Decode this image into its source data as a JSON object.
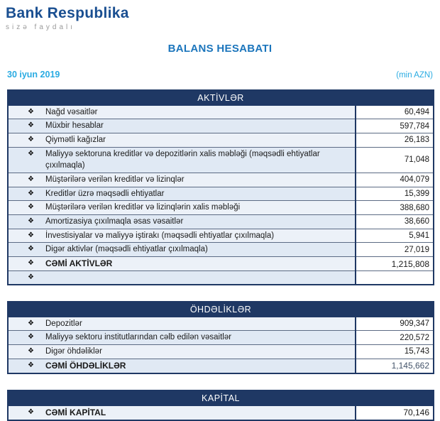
{
  "logo": {
    "title": "Bank Respublika",
    "tagline": "sizə faydalı"
  },
  "report": {
    "title": "BALANS HESABATI",
    "date": "30 iyun 2019",
    "unit": "(min AZN)"
  },
  "bullet_icon": "❖",
  "colors": {
    "navy": "#1F3864",
    "title_blue": "#1B75BC",
    "accent_cyan": "#29ABE2",
    "logo_navy": "#1A4F91",
    "row_bg": "#ECF1F8",
    "row_bg_alt": "#E0E9F4",
    "total_blue": "#44546A"
  },
  "sections": [
    {
      "header": "AKTİVLƏR",
      "rows": [
        {
          "label": "Nağd vəsaitlər",
          "value": "60,494"
        },
        {
          "label": "Müxbir hesablar",
          "value": "597,784"
        },
        {
          "label": "Qiymətli kağızlar",
          "value": "26,183"
        },
        {
          "label": "Maliyyə sektoruna kreditlər və depozitlərin xalis məbləği (məqsədli ehtiyatlar çıxılmaqla)",
          "value": "71,048"
        },
        {
          "label": "Müştərilərə verilən kreditlər və lizinqlər",
          "value": "404,079"
        },
        {
          "label": "Kreditlər üzrə məqsədli ehtiyatlar",
          "value": "15,399"
        },
        {
          "label": "Müştərilərə verilən kreditlər və lizinqlərin xalis məbləği",
          "value": "388,680"
        },
        {
          "label": "Amortizasiya çıxılmaqla əsas vəsaitlər",
          "value": "38,660"
        },
        {
          "label": "İnvestisiyalar və maliyyə iştirakı (məqsədli ehtiyatlar çıxılmaqla)",
          "value": "5,941"
        },
        {
          "label": "Digər aktivlər (məqsədli ehtiyatlar çıxılmaqla)",
          "value": "27,019"
        },
        {
          "label": "CƏMİ AKTİVLƏR",
          "value": "1,215,808",
          "bold": true
        },
        {
          "label": "",
          "value": "",
          "empty": true
        }
      ]
    },
    {
      "header": "ÖHDƏLİKLƏR",
      "rows": [
        {
          "label": "Depozitlər",
          "value": "909,347"
        },
        {
          "label": "Maliyyə sektoru institutlarından cəlb edilən vəsaitlər",
          "value": "220,572"
        },
        {
          "label": "Digər öhdəliklər",
          "value": "15,743"
        },
        {
          "label": "CƏMİ ÖHDƏLİKLƏR",
          "value": "1,145,662",
          "bold": true,
          "value_blue": true
        }
      ]
    },
    {
      "header": "KAPİTAL",
      "rows": [
        {
          "label": "CƏMİ KAPİTAL",
          "value": "70,146",
          "bold": true
        }
      ]
    }
  ]
}
